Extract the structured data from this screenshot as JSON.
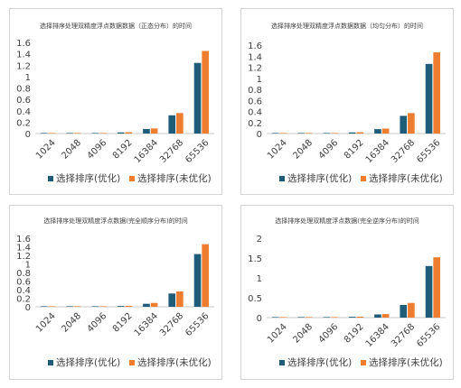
{
  "colors": {
    "series1": "#1f5c7a",
    "series2": "#ed7d31",
    "axis": "#c8c8c8",
    "text": "#404040"
  },
  "chart_data": [
    {
      "type": "bar",
      "title": "选择排序处理双精度浮点数据数据（正态分布）的时间",
      "categories": [
        "1024",
        "2048",
        "4096",
        "8192",
        "16384",
        "32768",
        "65536"
      ],
      "ylim": [
        0,
        1.6
      ],
      "yticks": [
        "0",
        "0.2",
        "0.4",
        "0.6",
        "0.8",
        "1",
        "1.2",
        "1.4",
        "1.6"
      ],
      "series": [
        {
          "name": "选择排序(优化)",
          "values": [
            0.001,
            0.002,
            0.005,
            0.02,
            0.08,
            0.32,
            1.24
          ]
        },
        {
          "name": "选择排序(未优化)",
          "values": [
            0.001,
            0.003,
            0.006,
            0.023,
            0.09,
            0.36,
            1.45
          ]
        }
      ],
      "legend": "bottom",
      "grid": false
    },
    {
      "type": "bar",
      "title": "选择排序处理双精度浮点数据数据（均匀分布）的时间",
      "categories": [
        "1024",
        "2048",
        "4096",
        "8192",
        "16384",
        "32768",
        "65536"
      ],
      "ylim": [
        0,
        1.6
      ],
      "yticks": [
        "0",
        "0.2",
        "0.4",
        "0.6",
        "0.8",
        "1",
        "1.2",
        "1.4",
        "1.6"
      ],
      "series": [
        {
          "name": "选择排序(优化)",
          "values": [
            0.001,
            0.002,
            0.005,
            0.02,
            0.08,
            0.32,
            1.26
          ]
        },
        {
          "name": "选择排序(未优化)",
          "values": [
            0.001,
            0.003,
            0.006,
            0.023,
            0.09,
            0.37,
            1.47
          ]
        }
      ],
      "legend": "bottom",
      "grid": false
    },
    {
      "type": "bar",
      "title": "选择排序处理双精度浮点数据(完全顺序分布)的时间",
      "categories": [
        "1024",
        "2048",
        "4096",
        "8192",
        "16384",
        "32768",
        "65536"
      ],
      "ylim": [
        0,
        1.6
      ],
      "yticks": [
        "0",
        "0.2",
        "0.4",
        "0.6",
        "0.8",
        "1",
        "1.2",
        "1.4",
        "1.6"
      ],
      "series": [
        {
          "name": "选择排序(优化)",
          "values": [
            0.001,
            0.002,
            0.005,
            0.018,
            0.07,
            0.31,
            1.23
          ]
        },
        {
          "name": "选择排序(未优化)",
          "values": [
            0.001,
            0.003,
            0.006,
            0.022,
            0.09,
            0.36,
            1.46
          ]
        }
      ],
      "legend": "bottom",
      "grid": false
    },
    {
      "type": "bar",
      "title": "选择排序处理双精度浮点数据(完全逆序分布)的时间",
      "categories": [
        "1024",
        "2048",
        "4096",
        "8192",
        "16384",
        "32768",
        "65536"
      ],
      "ylim": [
        0,
        2
      ],
      "yticks": [
        "0",
        "0.5",
        "1",
        "1.5",
        "2"
      ],
      "series": [
        {
          "name": "选择排序(优化)",
          "values": [
            0.001,
            0.002,
            0.005,
            0.02,
            0.08,
            0.32,
            1.3
          ]
        },
        {
          "name": "选择排序(未优化)",
          "values": [
            0.001,
            0.003,
            0.006,
            0.023,
            0.09,
            0.37,
            1.52
          ]
        }
      ],
      "legend": "bottom",
      "grid": false
    }
  ]
}
